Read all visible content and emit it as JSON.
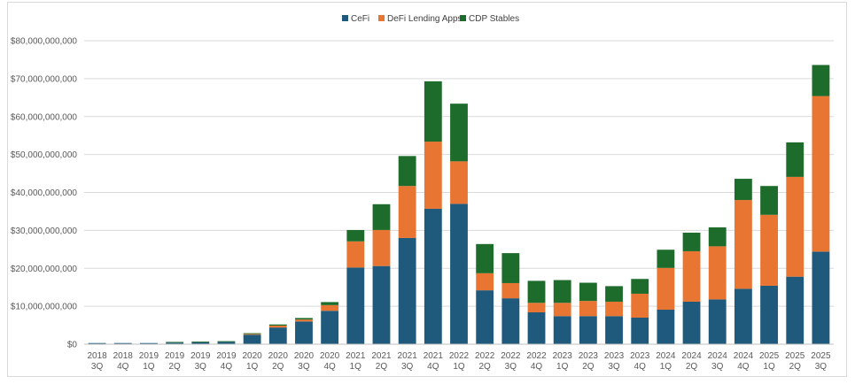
{
  "chart_data": {
    "type": "bar",
    "stacked": true,
    "title": "",
    "xlabel": "",
    "ylabel": "",
    "ylim": [
      0,
      80000000000
    ],
    "yticks": [
      "$0",
      "$10,000,000,000",
      "$20,000,000,000",
      "$30,000,000,000",
      "$40,000,000,000",
      "$50,000,000,000",
      "$60,000,000,000",
      "$70,000,000,000",
      "$80,000,000,000"
    ],
    "ytick_values": [
      0,
      10000000000,
      20000000000,
      30000000000,
      40000000000,
      50000000000,
      60000000000,
      70000000000,
      80000000000
    ],
    "grid": true,
    "legend_position": "top-center",
    "categories": [
      [
        "2018",
        "3Q"
      ],
      [
        "2018",
        "4Q"
      ],
      [
        "2019",
        "1Q"
      ],
      [
        "2019",
        "2Q"
      ],
      [
        "2019",
        "3Q"
      ],
      [
        "2019",
        "4Q"
      ],
      [
        "2020",
        "1Q"
      ],
      [
        "2020",
        "2Q"
      ],
      [
        "2020",
        "3Q"
      ],
      [
        "2020",
        "4Q"
      ],
      [
        "2021",
        "1Q"
      ],
      [
        "2021",
        "2Q"
      ],
      [
        "2021",
        "3Q"
      ],
      [
        "2021",
        "4Q"
      ],
      [
        "2022",
        "1Q"
      ],
      [
        "2022",
        "2Q"
      ],
      [
        "2022",
        "3Q"
      ],
      [
        "2022",
        "4Q"
      ],
      [
        "2023",
        "1Q"
      ],
      [
        "2023",
        "2Q"
      ],
      [
        "2023",
        "3Q"
      ],
      [
        "2023",
        "4Q"
      ],
      [
        "2024",
        "1Q"
      ],
      [
        "2024",
        "2Q"
      ],
      [
        "2024",
        "3Q"
      ],
      [
        "2024",
        "4Q"
      ],
      [
        "2025",
        "1Q"
      ],
      [
        "2025",
        "2Q"
      ],
      [
        "2025",
        "3Q"
      ]
    ],
    "series": [
      {
        "name": "CeFi",
        "color": "#1f5a7d",
        "values": [
          300000000,
          300000000,
          300000000,
          400000000,
          500000000,
          600000000,
          2500000000,
          4400000000,
          6000000000,
          8800000000,
          20200000000,
          20600000000,
          28000000000,
          35700000000,
          37000000000,
          14200000000,
          12100000000,
          8400000000,
          7400000000,
          7400000000,
          7400000000,
          7000000000,
          9100000000,
          11200000000,
          11800000000,
          14600000000,
          15400000000,
          17800000000,
          24400000000
        ]
      },
      {
        "name": "DeFi Lending Apps",
        "color": "#e97532",
        "values": [
          0,
          0,
          0,
          0,
          0,
          0,
          200000000,
          500000000,
          500000000,
          1500000000,
          6900000000,
          9500000000,
          13700000000,
          17700000000,
          11200000000,
          4500000000,
          4000000000,
          2500000000,
          3500000000,
          4000000000,
          3800000000,
          6300000000,
          11000000000,
          13300000000,
          14000000000,
          23400000000,
          18700000000,
          26300000000,
          41000000000
        ]
      },
      {
        "name": "CDP Stables",
        "color": "#1e6c2b",
        "values": [
          0,
          0,
          0,
          200000000,
          200000000,
          200000000,
          200000000,
          300000000,
          400000000,
          800000000,
          3000000000,
          6800000000,
          7900000000,
          15900000000,
          15200000000,
          7700000000,
          7900000000,
          5800000000,
          6000000000,
          4800000000,
          4100000000,
          3900000000,
          4800000000,
          4900000000,
          5000000000,
          5600000000,
          7600000000,
          9100000000,
          8200000000
        ]
      }
    ]
  }
}
